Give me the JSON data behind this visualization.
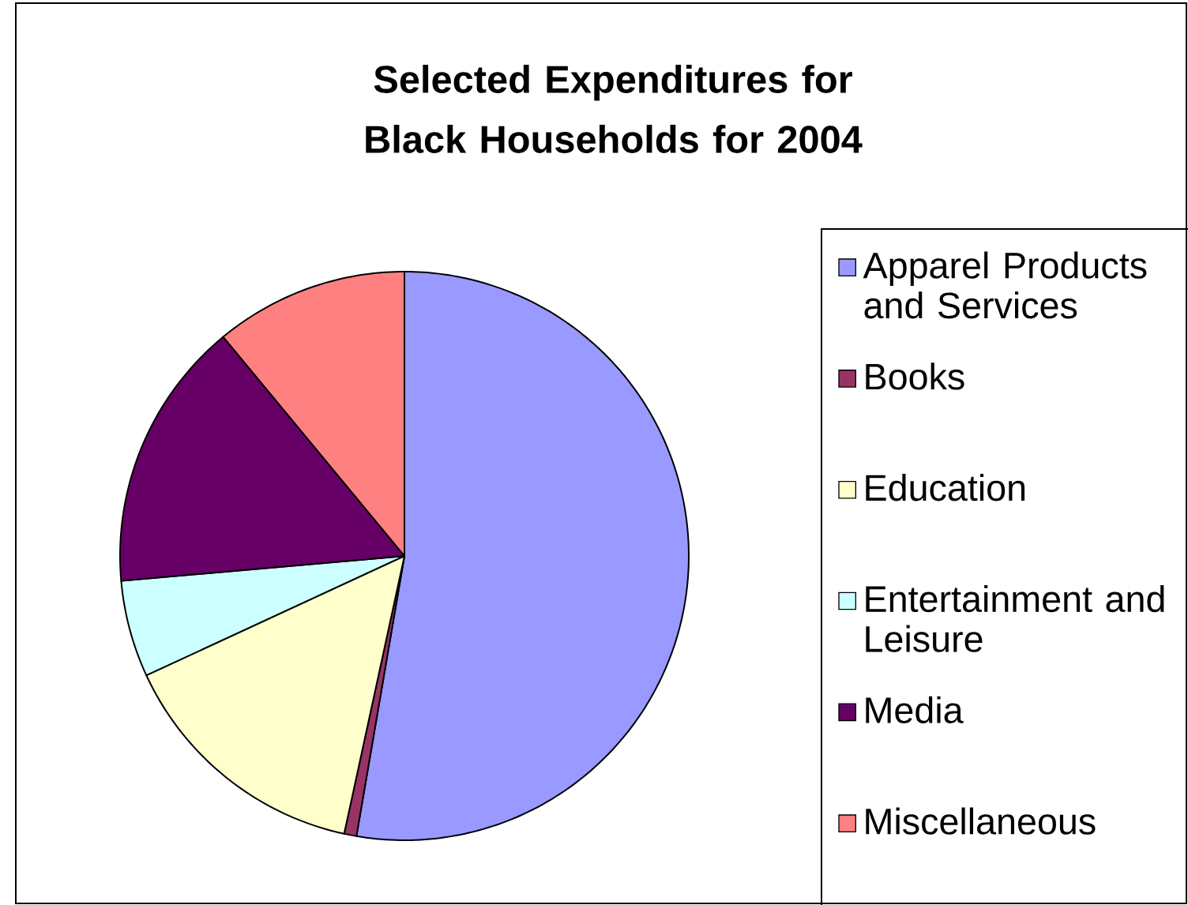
{
  "chart_data": {
    "type": "pie",
    "title": "Selected Expenditures for Black Households for 2004",
    "categories": [
      "Apparel Products and Services",
      "Books",
      "Education",
      "Entertainment and Leisure",
      "Media",
      "Miscellaneous"
    ],
    "values": [
      52.7,
      0.7,
      14.7,
      5.5,
      15.4,
      11.0
    ],
    "colors": [
      "#9999ff",
      "#993366",
      "#ffffcc",
      "#ccffff",
      "#660066",
      "#ff8080"
    ],
    "legend": "right"
  }
}
